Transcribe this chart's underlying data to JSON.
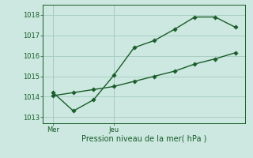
{
  "bg_color": "#cce8e0",
  "line_color": "#1a5c2a",
  "grid_color": "#aacfc4",
  "line1_x": [
    0,
    1,
    2,
    3,
    4,
    5,
    6,
    7,
    8,
    9
  ],
  "line1_y": [
    1014.2,
    1013.3,
    1013.85,
    1015.05,
    1016.4,
    1016.75,
    1017.3,
    1017.9,
    1017.9,
    1017.4
  ],
  "line2_x": [
    0,
    1,
    2,
    3,
    4,
    5,
    6,
    7,
    8,
    9
  ],
  "line2_y": [
    1014.05,
    1014.2,
    1014.35,
    1014.5,
    1014.75,
    1015.0,
    1015.25,
    1015.6,
    1015.85,
    1016.15
  ],
  "yticks": [
    1013,
    1014,
    1015,
    1016,
    1017,
    1018
  ],
  "ylim": [
    1012.7,
    1018.5
  ],
  "xlim": [
    -0.5,
    9.5
  ],
  "mer_x": 0,
  "jeu_x": 3,
  "xlabel": "Pression niveau de la mer( hPa )",
  "xlabel_color": "#1a5c2a",
  "tick_color": "#1a5c2a",
  "marker": "D",
  "markersize": 2.8,
  "linewidth": 1.0,
  "tick_fontsize": 6.0,
  "xlabel_fontsize": 7.0
}
